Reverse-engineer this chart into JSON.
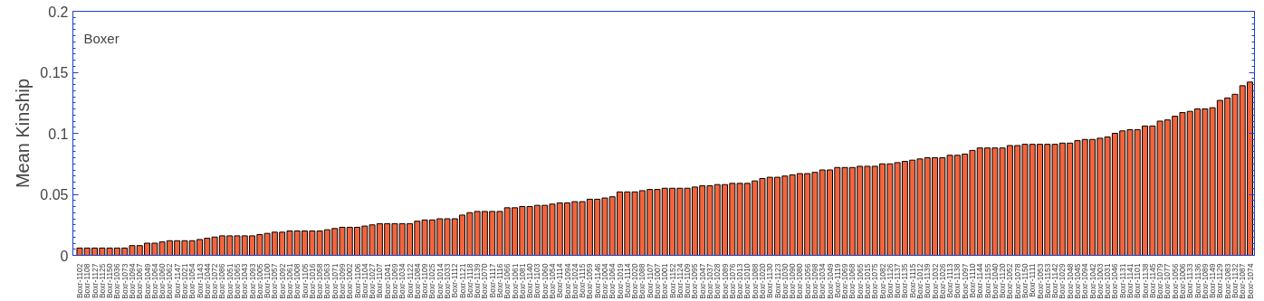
{
  "chart_data": {
    "type": "bar",
    "ylabel": "Mean Kinship",
    "annotations": [
      "Boxer"
    ],
    "color": "#f4643c",
    "categories": [
      "Boxr-1102",
      "Boxr-1108",
      "Boxr-1127",
      "Boxr-1125",
      "Boxr-1150",
      "Boxr-1036",
      "Boxr-1073",
      "Boxr-1094",
      "Boxr-1067",
      "Boxr-1049",
      "Boxr-1064",
      "Boxr-1060",
      "Boxr-1062",
      "Boxr-1147",
      "Boxr-1021",
      "Boxr-1054",
      "Boxr-1143",
      "Boxr-1044",
      "Boxr-1072",
      "Boxr-1086",
      "Boxr-1051",
      "Boxr-1065",
      "Boxr-1043",
      "Boxr-1093",
      "Boxr-1005",
      "Boxr-1100",
      "Boxr-1057",
      "Boxr-1092",
      "Boxr-1061",
      "Boxr-1008",
      "Boxr-1105",
      "Boxr-1016",
      "Boxr-1058",
      "Boxr-1063",
      "Boxr-1071",
      "Boxr-1099",
      "Boxr-1002",
      "Boxr-1106",
      "Boxr-1104",
      "Boxr-1027",
      "Boxr-1107",
      "Boxr-1041",
      "Boxr-1069",
      "Boxr-1034",
      "Boxr-1122",
      "Boxr-1084",
      "Boxr-1109",
      "Boxr-1025",
      "Boxr-1014",
      "Boxr-1033",
      "Boxr-1112",
      "Boxr-1121",
      "Boxr-1118",
      "Boxr-1139",
      "Boxr-1070",
      "Boxr-1117",
      "Boxr-1116",
      "Boxr-1066",
      "Boxr-1061",
      "Boxr-1081",
      "Boxr-1140",
      "Boxr-1103",
      "Boxr-1060",
      "Boxr-1054",
      "Boxr-1114",
      "Boxr-1094",
      "Boxr-1024",
      "Boxr-1115",
      "Boxr-1059",
      "Boxr-1146",
      "Boxr-1004",
      "Boxr-1064",
      "Boxr-1019",
      "Boxr-1114",
      "Boxr-1020",
      "Boxr-1088",
      "Boxr-1107",
      "Boxr-1007",
      "Boxr-1001",
      "Boxr-1152",
      "Boxr-1124",
      "Boxr-1109",
      "Boxr-1095",
      "Boxr-1047",
      "Boxr-1037",
      "Boxr-1028",
      "Boxr-1089",
      "Boxr-1076",
      "Boxr-1013",
      "Boxr-1010",
      "Boxr-1088",
      "Boxr-1020",
      "Boxr-1130",
      "Boxr-1123",
      "Boxr-1030",
      "Boxr-1090",
      "Boxr-1080",
      "Boxr-1056",
      "Boxr-1098",
      "Boxr-1034",
      "Boxr-1049",
      "Boxr-1119",
      "Boxr-1069",
      "Boxr-1068",
      "Boxr-1065",
      "Boxr-1015",
      "Boxr-1075",
      "Boxr-1082",
      "Boxr-1126",
      "Boxr-1137",
      "Boxr-1135",
      "Boxr-1115",
      "Boxr-1012",
      "Boxr-1139",
      "Boxr-1032",
      "Boxr-1026",
      "Boxr-1113",
      "Boxr-1138",
      "Boxr-1097",
      "Boxr-1110",
      "Boxr-1144",
      "Boxr-1155",
      "Boxr-1040",
      "Boxr-1120",
      "Boxr-1052",
      "Boxr-1078",
      "Boxr-1150",
      "Boxr-1111",
      "Boxr-1053",
      "Boxr-1153",
      "Boxr-1142",
      "Boxr-1029",
      "Boxr-1048",
      "Boxr-1045",
      "Boxr-1094",
      "Boxr-1042",
      "Boxr-1003",
      "Boxr-1031",
      "Boxr-1046",
      "Boxr-1131",
      "Boxr-1141",
      "Boxr-1101",
      "Boxr-1138",
      "Boxr-1145",
      "Boxr-1079",
      "Boxr-1077",
      "Boxr-1056",
      "Boxr-1006",
      "Boxr-1133",
      "Boxr-1136",
      "Boxr-1089",
      "Boxr-1149",
      "Boxr-1129",
      "Boxr-1083",
      "Boxr-1132",
      "Boxr-1087",
      "Boxr-1074"
    ],
    "values": [
      0.006,
      0.006,
      0.006,
      0.006,
      0.006,
      0.006,
      0.006,
      0.008,
      0.008,
      0.01,
      0.01,
      0.011,
      0.012,
      0.012,
      0.012,
      0.012,
      0.013,
      0.014,
      0.015,
      0.016,
      0.016,
      0.016,
      0.016,
      0.016,
      0.017,
      0.018,
      0.019,
      0.019,
      0.02,
      0.02,
      0.02,
      0.02,
      0.02,
      0.021,
      0.022,
      0.023,
      0.023,
      0.023,
      0.024,
      0.025,
      0.026,
      0.026,
      0.026,
      0.026,
      0.026,
      0.028,
      0.029,
      0.029,
      0.03,
      0.03,
      0.03,
      0.033,
      0.035,
      0.036,
      0.036,
      0.036,
      0.036,
      0.039,
      0.039,
      0.04,
      0.04,
      0.041,
      0.041,
      0.042,
      0.043,
      0.043,
      0.044,
      0.044,
      0.046,
      0.046,
      0.047,
      0.048,
      0.052,
      0.052,
      0.052,
      0.053,
      0.054,
      0.054,
      0.055,
      0.055,
      0.055,
      0.055,
      0.056,
      0.057,
      0.057,
      0.058,
      0.058,
      0.059,
      0.059,
      0.059,
      0.061,
      0.063,
      0.064,
      0.064,
      0.065,
      0.066,
      0.067,
      0.067,
      0.068,
      0.07,
      0.07,
      0.072,
      0.072,
      0.072,
      0.073,
      0.073,
      0.073,
      0.075,
      0.075,
      0.076,
      0.077,
      0.078,
      0.079,
      0.08,
      0.08,
      0.08,
      0.082,
      0.082,
      0.083,
      0.086,
      0.088,
      0.088,
      0.088,
      0.088,
      0.09,
      0.09,
      0.091,
      0.091,
      0.091,
      0.091,
      0.091,
      0.092,
      0.092,
      0.094,
      0.095,
      0.095,
      0.096,
      0.097,
      0.1,
      0.102,
      0.103,
      0.103,
      0.106,
      0.106,
      0.11,
      0.111,
      0.114,
      0.117,
      0.118,
      0.12,
      0.12,
      0.121,
      0.127,
      0.129,
      0.132,
      0.139,
      0.142
    ],
    "ylim": [
      0,
      0.2
    ],
    "yticks": [
      0,
      0.05,
      0.1,
      0.15,
      0.2
    ]
  }
}
